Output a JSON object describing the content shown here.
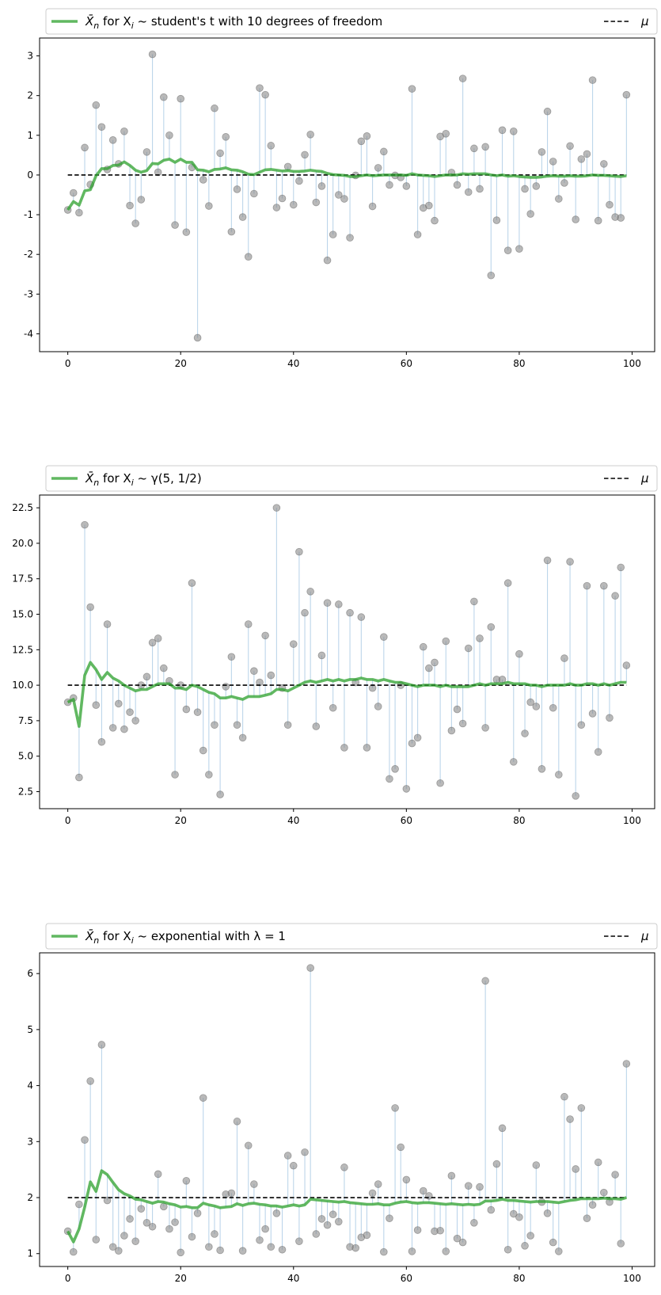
{
  "chart_data": [
    {
      "type": "scatter",
      "legend": {
        "placement": "top (above axes, spanning full width)",
        "series_label_prefix": "X̄",
        "series_label_sub": "n",
        "series_label_text": " for X",
        "series_label_sub2": "i",
        "series_label_rest": " ~ student's t with 10 degrees of freedom",
        "mu_label": "μ"
      },
      "xlim": [
        -5,
        104
      ],
      "ylim": [
        -4.45,
        3.45
      ],
      "xticks": [
        0,
        20,
        40,
        60,
        80,
        100
      ],
      "yticks": [
        3,
        2,
        1,
        0,
        -1,
        -2,
        -3,
        -4
      ],
      "mu": 0,
      "samples": [
        -0.88,
        -0.45,
        -0.95,
        0.69,
        -0.24,
        1.76,
        1.21,
        0.14,
        0.88,
        0.28,
        1.1,
        -0.77,
        -1.22,
        -0.62,
        0.58,
        3.04,
        0.07,
        1.96,
        1.0,
        -1.26,
        1.92,
        -1.44,
        0.19,
        -4.1,
        -0.12,
        -0.78,
        1.68,
        0.55,
        0.96,
        -1.43,
        -0.36,
        -1.06,
        -2.06,
        -0.47,
        2.19,
        2.02,
        0.74,
        -0.82,
        -0.59,
        0.21,
        -0.75,
        -0.15,
        0.51,
        1.02,
        -0.69,
        -0.28,
        -2.15,
        -1.5,
        -0.5,
        -0.6,
        -1.58,
        -0.01,
        0.85,
        0.98,
        -0.79,
        0.18,
        0.59,
        -0.25,
        -0.01,
        -0.06,
        -0.28,
        2.17,
        -1.5,
        -0.83,
        -0.77,
        -1.15,
        0.97,
        1.04,
        0.06,
        -0.25,
        2.43,
        -0.43,
        0.67,
        -0.35,
        0.71,
        -2.53,
        -1.14,
        1.13,
        -1.9,
        1.1,
        -1.86,
        -0.35,
        -0.98,
        -0.28,
        0.58,
        1.6,
        0.34,
        -0.6,
        -0.2,
        0.73,
        -1.12,
        0.4,
        0.53,
        2.39,
        -1.15,
        0.28,
        -0.75,
        -1.06,
        -1.08,
        2.02
      ],
      "running_mean": [
        -0.88,
        -0.67,
        -0.76,
        -0.4,
        -0.37,
        -0.02,
        0.16,
        0.16,
        0.24,
        0.25,
        0.33,
        0.24,
        0.12,
        0.07,
        0.11,
        0.29,
        0.28,
        0.37,
        0.4,
        0.32,
        0.4,
        0.32,
        0.32,
        0.13,
        0.12,
        0.08,
        0.14,
        0.15,
        0.18,
        0.13,
        0.12,
        0.08,
        0.02,
        0.01,
        0.07,
        0.13,
        0.14,
        0.12,
        0.1,
        0.11,
        0.09,
        0.09,
        0.1,
        0.12,
        0.1,
        0.09,
        0.04,
        0.01,
        0.0,
        -0.01,
        -0.04,
        -0.04,
        -0.02,
        0.0,
        -0.02,
        -0.01,
        0.0,
        0.0,
        0.0,
        0.0,
        -0.01,
        0.03,
        0.0,
        -0.01,
        -0.02,
        -0.04,
        -0.02,
        0.0,
        0.0,
        0.0,
        0.03,
        0.02,
        0.03,
        0.03,
        0.03,
        0.0,
        -0.02,
        0.0,
        -0.03,
        -0.02,
        -0.04,
        -0.05,
        -0.06,
        -0.06,
        -0.05,
        -0.03,
        -0.02,
        -0.03,
        -0.03,
        -0.02,
        -0.03,
        -0.03,
        -0.02,
        0.0,
        -0.01,
        -0.01,
        -0.02,
        -0.03,
        -0.04,
        -0.02
      ]
    },
    {
      "type": "scatter",
      "legend": {
        "placement": "top (above axes, spanning full width)",
        "series_label_prefix": "X̄",
        "series_label_sub": "n",
        "series_label_text": " for X",
        "series_label_sub2": "i",
        "series_label_rest": " ~ γ(5, 1/2)",
        "mu_label": "μ"
      },
      "xlim": [
        -5,
        104
      ],
      "ylim": [
        1.3,
        23.4
      ],
      "xticks": [
        0,
        20,
        40,
        60,
        80,
        100
      ],
      "yticks": [
        22.5,
        20.0,
        17.5,
        15.0,
        12.5,
        10.0,
        7.5,
        5.0,
        2.5
      ],
      "ytick_labels": [
        "22.5",
        "20.0",
        "17.5",
        "15.0",
        "12.5",
        "10.0",
        "7.5",
        "5.0",
        "2.5"
      ],
      "mu": 10,
      "samples": [
        8.8,
        9.1,
        3.5,
        21.3,
        15.5,
        8.6,
        6.0,
        14.3,
        7.0,
        8.7,
        6.9,
        8.1,
        7.5,
        10.0,
        10.6,
        13.0,
        13.3,
        11.2,
        10.3,
        3.7,
        10.0,
        8.3,
        17.2,
        8.1,
        5.4,
        3.7,
        7.2,
        2.3,
        9.9,
        12.0,
        7.2,
        6.3,
        14.3,
        11.0,
        10.2,
        13.5,
        10.7,
        22.5,
        9.8,
        7.2,
        12.9,
        19.4,
        15.1,
        16.6,
        7.1,
        12.1,
        15.8,
        8.4,
        15.7,
        5.6,
        15.1,
        10.2,
        14.8,
        5.6,
        9.8,
        8.5,
        13.4,
        3.4,
        4.1,
        10.0,
        2.7,
        5.9,
        6.3,
        12.7,
        11.2,
        11.6,
        3.1,
        13.1,
        6.8,
        8.3,
        7.3,
        12.6,
        15.9,
        13.3,
        7.0,
        14.1,
        10.4,
        10.4,
        17.2,
        4.6,
        12.2,
        6.6,
        8.8,
        8.5,
        4.1,
        18.8,
        8.4,
        3.7,
        11.9,
        18.7,
        2.2,
        7.2,
        17.0,
        8.0,
        5.3,
        17.0,
        7.7,
        16.3,
        18.3,
        11.4
      ],
      "running_mean": [
        8.8,
        9.0,
        7.1,
        10.7,
        11.6,
        11.1,
        10.4,
        10.9,
        10.5,
        10.3,
        10.0,
        9.8,
        9.6,
        9.7,
        9.7,
        9.9,
        10.1,
        10.1,
        10.1,
        9.8,
        9.8,
        9.7,
        10.0,
        9.9,
        9.7,
        9.5,
        9.4,
        9.1,
        9.1,
        9.2,
        9.1,
        9.0,
        9.2,
        9.2,
        9.2,
        9.3,
        9.4,
        9.7,
        9.7,
        9.6,
        9.8,
        10.0,
        10.2,
        10.3,
        10.2,
        10.3,
        10.4,
        10.3,
        10.4,
        10.3,
        10.4,
        10.4,
        10.5,
        10.4,
        10.4,
        10.3,
        10.4,
        10.3,
        10.2,
        10.2,
        10.1,
        10.0,
        9.9,
        10.0,
        10.0,
        10.0,
        9.9,
        10.0,
        9.9,
        9.9,
        9.9,
        9.9,
        10.0,
        10.1,
        10.0,
        10.1,
        10.1,
        10.1,
        10.2,
        10.1,
        10.1,
        10.1,
        10.0,
        10.0,
        9.9,
        10.0,
        10.0,
        10.0,
        10.0,
        10.1,
        10.0,
        10.0,
        10.1,
        10.1,
        10.0,
        10.1,
        10.0,
        10.1,
        10.2,
        10.2
      ]
    },
    {
      "type": "scatter",
      "legend": {
        "placement": "top (above axes, spanning full width)",
        "series_label_prefix": "X̄",
        "series_label_sub": "n",
        "series_label_text": " for X",
        "series_label_sub2": "i",
        "series_label_rest": " ~ exponential with λ = 1",
        "mu_label": "μ"
      },
      "xlim": [
        -5,
        104
      ],
      "ylim": [
        0.77,
        6.37
      ],
      "xticks": [
        0,
        20,
        40,
        60,
        80,
        100
      ],
      "yticks": [
        6,
        5,
        4,
        3,
        2,
        1
      ],
      "mu": 2,
      "samples": [
        1.4,
        1.03,
        1.88,
        3.03,
        4.08,
        1.25,
        4.73,
        1.95,
        1.12,
        1.05,
        1.32,
        1.62,
        1.22,
        1.8,
        1.55,
        1.48,
        2.42,
        1.84,
        1.44,
        1.56,
        1.02,
        2.3,
        1.3,
        1.72,
        3.78,
        1.12,
        1.35,
        1.06,
        2.06,
        2.08,
        3.36,
        1.05,
        2.93,
        2.24,
        1.24,
        1.44,
        1.12,
        1.72,
        1.07,
        2.75,
        2.57,
        1.22,
        2.81,
        6.1,
        1.35,
        1.62,
        1.51,
        1.7,
        1.57,
        2.54,
        1.12,
        1.1,
        1.29,
        1.33,
        2.08,
        2.24,
        1.03,
        1.63,
        3.6,
        2.9,
        2.32,
        1.04,
        1.42,
        2.12,
        2.03,
        1.4,
        1.41,
        1.04,
        2.39,
        1.27,
        1.2,
        2.21,
        1.55,
        2.19,
        5.87,
        1.78,
        2.6,
        3.24,
        1.07,
        1.71,
        1.65,
        1.14,
        1.32,
        2.58,
        1.92,
        1.72,
        1.2,
        1.04,
        3.8,
        3.4,
        2.51,
        3.6,
        1.63,
        1.87,
        2.63,
        2.09,
        1.92,
        2.41,
        1.18,
        4.39
      ],
      "running_mean": [
        1.4,
        1.21,
        1.44,
        1.83,
        2.28,
        2.11,
        2.48,
        2.41,
        2.27,
        2.14,
        2.07,
        2.03,
        1.97,
        1.96,
        1.93,
        1.9,
        1.93,
        1.92,
        1.89,
        1.87,
        1.83,
        1.84,
        1.82,
        1.82,
        1.9,
        1.87,
        1.85,
        1.82,
        1.83,
        1.84,
        1.89,
        1.86,
        1.89,
        1.9,
        1.88,
        1.87,
        1.85,
        1.85,
        1.83,
        1.85,
        1.87,
        1.85,
        1.87,
        1.97,
        1.96,
        1.95,
        1.94,
        1.93,
        1.92,
        1.93,
        1.91,
        1.9,
        1.89,
        1.88,
        1.88,
        1.89,
        1.87,
        1.87,
        1.9,
        1.92,
        1.93,
        1.91,
        1.9,
        1.91,
        1.91,
        1.9,
        1.89,
        1.88,
        1.89,
        1.88,
        1.87,
        1.88,
        1.87,
        1.88,
        1.94,
        1.94,
        1.95,
        1.97,
        1.95,
        1.95,
        1.94,
        1.93,
        1.92,
        1.93,
        1.93,
        1.93,
        1.92,
        1.91,
        1.93,
        1.95,
        1.96,
        1.98,
        1.98,
        1.98,
        1.98,
        1.99,
        1.98,
        1.98,
        1.97,
        2.0
      ]
    }
  ],
  "colors": {
    "running_mean": "#2ca02c",
    "sample_marker": "#808080",
    "stem": "#a6c8e3",
    "mu_line": "#000000",
    "legend_border": "#cccccc"
  }
}
